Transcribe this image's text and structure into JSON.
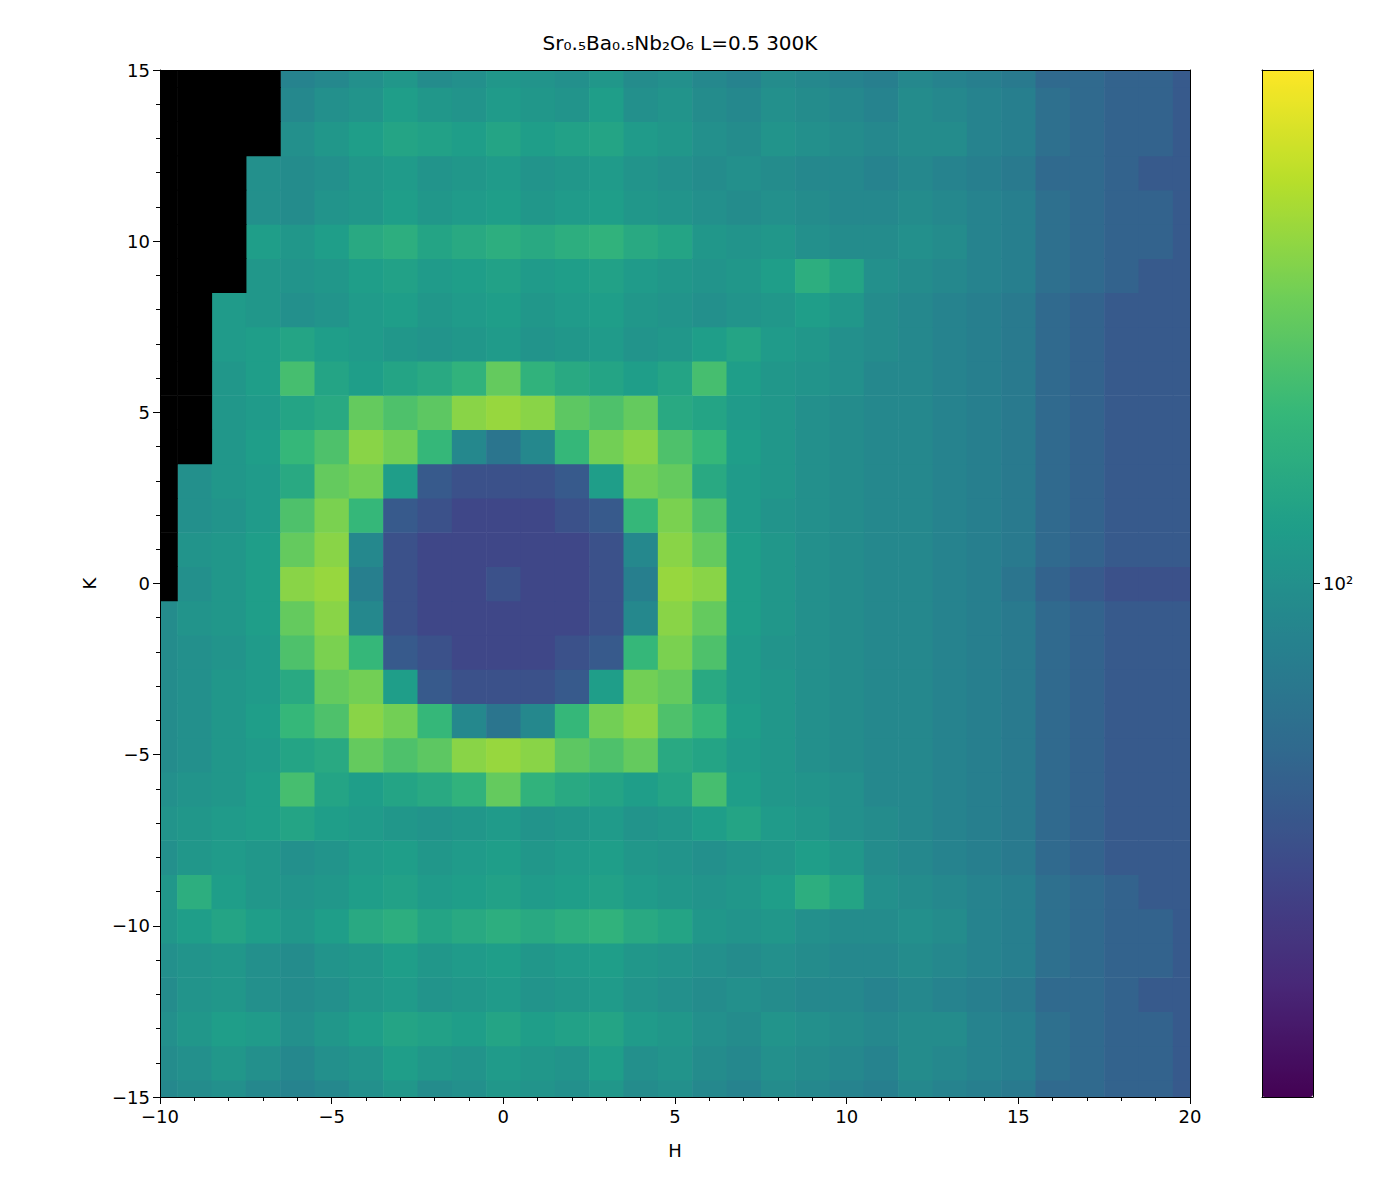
{
  "chart_data": {
    "type": "heatmap",
    "title": "Sr₀.₅Ba₀.₅Nb₂O₆ L=0.5 300K",
    "x_label": "H",
    "y_label": "K",
    "xlim": [
      -10,
      20
    ],
    "ylim": [
      -15,
      15
    ],
    "xticks": [
      {
        "value": -10,
        "label": "−10"
      },
      {
        "value": -5,
        "label": "−5"
      },
      0,
      5,
      10,
      15,
      20
    ],
    "yticks": [
      {
        "value": -15,
        "label": "−15"
      },
      {
        "value": -10,
        "label": "−10"
      },
      {
        "value": -5,
        "label": "−5"
      },
      0,
      5,
      10,
      15
    ],
    "colorbar": {
      "range": [
        20,
        500
      ],
      "ticks": [
        {
          "value": 100,
          "label": "10²"
        }
      ],
      "log": true
    },
    "cells": {
      "x": [
        -10,
        -9,
        -8,
        -7,
        -6,
        -5,
        -4,
        -3,
        -2,
        -1,
        0,
        1,
        2,
        3,
        4,
        5,
        6,
        7,
        8,
        9,
        10,
        11,
        12,
        13,
        14,
        15,
        16,
        17,
        18,
        19,
        20
      ],
      "y": [
        -15,
        -14,
        -13,
        -12,
        -11,
        -10,
        -9,
        -8,
        -7,
        -6,
        -5,
        -4,
        -3,
        -2,
        -1,
        0,
        1,
        2,
        3,
        4,
        5,
        6,
        7,
        8,
        9,
        10,
        11,
        12,
        13,
        14,
        15
      ],
      "values": [
        [
          90,
          95,
          100,
          90,
          85,
          90,
          100,
          110,
          95,
          100,
          110,
          105,
          100,
          110,
          95,
          100,
          90,
          85,
          95,
          90,
          85,
          80,
          90,
          85,
          80,
          75,
          60,
          60,
          55,
          55,
          50
        ],
        [
          95,
          100,
          110,
          100,
          90,
          100,
          105,
          120,
          110,
          105,
          115,
          110,
          105,
          120,
          100,
          105,
          95,
          90,
          100,
          95,
          90,
          85,
          95,
          90,
          85,
          80,
          65,
          60,
          55,
          55,
          50
        ],
        [
          100,
          110,
          120,
          115,
          100,
          110,
          120,
          130,
          125,
          120,
          130,
          120,
          125,
          130,
          115,
          110,
          100,
          95,
          105,
          100,
          95,
          90,
          95,
          95,
          85,
          80,
          65,
          60,
          55,
          55,
          50
        ],
        [
          95,
          105,
          110,
          100,
          95,
          100,
          110,
          115,
          105,
          110,
          115,
          105,
          110,
          115,
          105,
          100,
          95,
          100,
          95,
          90,
          90,
          85,
          90,
          85,
          80,
          75,
          60,
          60,
          55,
          50,
          50
        ],
        [
          100,
          105,
          110,
          100,
          95,
          105,
          110,
          120,
          110,
          115,
          120,
          110,
          115,
          120,
          110,
          105,
          100,
          95,
          100,
          95,
          90,
          90,
          95,
          90,
          85,
          80,
          65,
          60,
          55,
          55,
          50
        ],
        [
          110,
          120,
          130,
          120,
          110,
          120,
          140,
          150,
          130,
          140,
          150,
          140,
          150,
          160,
          140,
          130,
          110,
          105,
          110,
          100,
          95,
          95,
          100,
          95,
          85,
          80,
          65,
          60,
          55,
          55,
          50
        ],
        [
          110,
          150,
          120,
          110,
          105,
          110,
          120,
          125,
          115,
          120,
          125,
          115,
          120,
          125,
          115,
          110,
          105,
          110,
          120,
          150,
          130,
          100,
          95,
          90,
          85,
          80,
          65,
          60,
          55,
          50,
          50
        ],
        [
          100,
          110,
          115,
          110,
          100,
          105,
          115,
          120,
          110,
          115,
          120,
          110,
          115,
          120,
          110,
          105,
          100,
          105,
          110,
          120,
          110,
          95,
          90,
          85,
          80,
          75,
          60,
          55,
          50,
          50,
          50
        ],
        [
          105,
          110,
          115,
          120,
          130,
          120,
          115,
          110,
          105,
          110,
          115,
          105,
          110,
          115,
          105,
          110,
          120,
          130,
          115,
          110,
          100,
          95,
          90,
          85,
          80,
          75,
          60,
          55,
          50,
          50,
          50
        ],
        [
          100,
          105,
          110,
          120,
          190,
          130,
          120,
          130,
          140,
          160,
          230,
          160,
          140,
          130,
          120,
          130,
          190,
          120,
          110,
          105,
          100,
          90,
          90,
          85,
          80,
          75,
          60,
          55,
          50,
          50,
          50
        ],
        [
          95,
          100,
          110,
          115,
          130,
          140,
          230,
          200,
          220,
          280,
          300,
          280,
          220,
          200,
          230,
          140,
          130,
          115,
          110,
          100,
          95,
          90,
          90,
          85,
          80,
          75,
          60,
          55,
          50,
          50,
          50
        ],
        [
          95,
          100,
          110,
          120,
          170,
          200,
          280,
          250,
          170,
          90,
          70,
          90,
          170,
          250,
          280,
          200,
          170,
          120,
          110,
          100,
          95,
          90,
          90,
          85,
          80,
          75,
          60,
          55,
          50,
          50,
          50
        ],
        [
          95,
          100,
          110,
          115,
          140,
          230,
          250,
          120,
          50,
          45,
          45,
          45,
          50,
          120,
          250,
          230,
          140,
          115,
          110,
          100,
          95,
          90,
          90,
          85,
          80,
          75,
          60,
          55,
          50,
          50,
          50
        ],
        [
          95,
          100,
          105,
          115,
          200,
          260,
          170,
          50,
          45,
          40,
          40,
          40,
          45,
          50,
          170,
          260,
          200,
          115,
          105,
          100,
          95,
          90,
          90,
          85,
          80,
          75,
          60,
          55,
          50,
          50,
          50
        ],
        [
          95,
          105,
          110,
          120,
          230,
          280,
          90,
          45,
          40,
          40,
          40,
          40,
          40,
          45,
          90,
          280,
          230,
          120,
          110,
          100,
          95,
          90,
          90,
          85,
          80,
          75,
          60,
          55,
          50,
          50,
          50
        ],
        [
          null,
          100,
          110,
          120,
          280,
          300,
          80,
          45,
          40,
          40,
          45,
          40,
          40,
          45,
          80,
          300,
          280,
          120,
          110,
          100,
          95,
          90,
          90,
          85,
          80,
          70,
          55,
          50,
          45,
          45,
          45
        ],
        [
          null,
          105,
          110,
          120,
          230,
          280,
          90,
          45,
          40,
          40,
          40,
          40,
          40,
          45,
          90,
          280,
          230,
          120,
          110,
          100,
          95,
          90,
          90,
          85,
          80,
          75,
          60,
          55,
          50,
          50,
          50
        ],
        [
          null,
          100,
          105,
          115,
          200,
          260,
          170,
          50,
          45,
          40,
          40,
          40,
          45,
          50,
          170,
          260,
          200,
          115,
          105,
          100,
          95,
          90,
          90,
          85,
          80,
          75,
          60,
          55,
          50,
          50,
          50
        ],
        [
          null,
          100,
          110,
          115,
          140,
          230,
          250,
          120,
          50,
          45,
          45,
          45,
          50,
          120,
          250,
          230,
          140,
          115,
          110,
          100,
          95,
          90,
          90,
          85,
          80,
          75,
          60,
          55,
          50,
          50,
          50
        ],
        [
          null,
          null,
          110,
          120,
          170,
          200,
          280,
          250,
          170,
          90,
          70,
          90,
          170,
          250,
          280,
          200,
          170,
          120,
          110,
          100,
          95,
          90,
          90,
          85,
          80,
          75,
          60,
          55,
          50,
          50,
          50
        ],
        [
          null,
          null,
          110,
          115,
          130,
          140,
          230,
          200,
          220,
          280,
          300,
          280,
          220,
          200,
          230,
          140,
          130,
          115,
          110,
          100,
          95,
          90,
          90,
          85,
          80,
          75,
          60,
          55,
          50,
          50,
          50
        ],
        [
          null,
          null,
          110,
          120,
          190,
          130,
          120,
          130,
          140,
          160,
          230,
          160,
          140,
          130,
          120,
          130,
          190,
          120,
          110,
          105,
          100,
          90,
          90,
          85,
          80,
          75,
          60,
          55,
          50,
          50,
          50
        ],
        [
          null,
          null,
          115,
          120,
          130,
          120,
          115,
          110,
          105,
          110,
          115,
          105,
          110,
          115,
          105,
          110,
          120,
          130,
          115,
          110,
          100,
          95,
          90,
          85,
          80,
          75,
          60,
          55,
          50,
          50,
          50
        ],
        [
          null,
          null,
          115,
          110,
          100,
          105,
          115,
          120,
          110,
          115,
          120,
          110,
          115,
          120,
          110,
          105,
          100,
          105,
          110,
          120,
          110,
          95,
          90,
          85,
          80,
          75,
          60,
          55,
          50,
          50,
          50
        ],
        [
          null,
          null,
          null,
          110,
          105,
          110,
          120,
          125,
          115,
          120,
          125,
          115,
          120,
          125,
          115,
          110,
          105,
          110,
          120,
          150,
          130,
          100,
          95,
          90,
          85,
          80,
          65,
          60,
          55,
          50,
          50
        ],
        [
          null,
          null,
          null,
          120,
          110,
          120,
          140,
          150,
          130,
          140,
          150,
          140,
          150,
          160,
          140,
          130,
          110,
          105,
          110,
          100,
          95,
          95,
          100,
          95,
          85,
          80,
          65,
          60,
          55,
          55,
          50
        ],
        [
          null,
          null,
          null,
          100,
          95,
          105,
          110,
          120,
          110,
          115,
          120,
          110,
          115,
          120,
          110,
          105,
          100,
          95,
          100,
          95,
          90,
          90,
          95,
          90,
          85,
          80,
          65,
          60,
          55,
          55,
          50
        ],
        [
          null,
          null,
          null,
          100,
          95,
          100,
          110,
          115,
          105,
          110,
          115,
          105,
          110,
          115,
          105,
          100,
          95,
          100,
          95,
          90,
          90,
          85,
          90,
          85,
          80,
          75,
          60,
          60,
          55,
          50,
          50
        ],
        [
          null,
          null,
          null,
          null,
          100,
          110,
          120,
          130,
          125,
          120,
          130,
          120,
          125,
          130,
          115,
          110,
          100,
          95,
          105,
          100,
          95,
          90,
          95,
          95,
          85,
          80,
          65,
          60,
          55,
          55,
          50
        ],
        [
          null,
          null,
          null,
          null,
          90,
          100,
          105,
          120,
          110,
          105,
          115,
          110,
          105,
          120,
          100,
          105,
          95,
          90,
          100,
          95,
          90,
          85,
          95,
          90,
          85,
          80,
          65,
          60,
          55,
          55,
          50
        ],
        [
          null,
          null,
          null,
          null,
          85,
          90,
          100,
          110,
          95,
          100,
          110,
          105,
          100,
          110,
          95,
          100,
          90,
          85,
          95,
          90,
          85,
          80,
          90,
          85,
          80,
          75,
          60,
          60,
          55,
          55,
          50
        ]
      ]
    }
  }
}
